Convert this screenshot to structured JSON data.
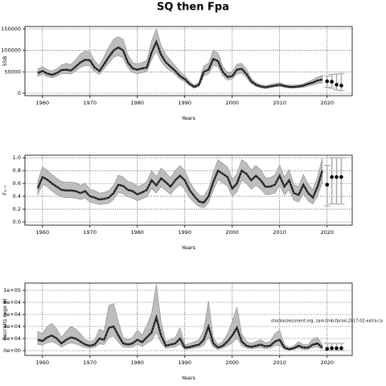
{
  "title": "SQ then Fpa",
  "chart_data": [
    {
      "type": "line",
      "xlabel": "Years",
      "ylabel": "SSB",
      "xlim": [
        1956.3,
        2025.3
      ],
      "xticks": [
        1960,
        1970,
        1980,
        1990,
        2000,
        2010,
        2020
      ],
      "ylim": [
        -5600,
        155600
      ],
      "yticks": [
        0,
        50000,
        100000,
        150000
      ],
      "grid": true,
      "x": [
        1959,
        1960,
        1961,
        1962,
        1963,
        1964,
        1965,
        1966,
        1967,
        1968,
        1969,
        1970,
        1971,
        1972,
        1973,
        1974,
        1975,
        1976,
        1977,
        1978,
        1979,
        1980,
        1981,
        1982,
        1983,
        1984,
        1985,
        1986,
        1987,
        1988,
        1989,
        1990,
        1991,
        1992,
        1993,
        1994,
        1995,
        1996,
        1997,
        1998,
        1999,
        2000,
        2001,
        2002,
        2003,
        2004,
        2005,
        2006,
        2007,
        2008,
        2009,
        2010,
        2011,
        2012,
        2013,
        2014,
        2015,
        2016,
        2017,
        2018,
        2019
      ],
      "values": [
        47000,
        52000,
        46000,
        43000,
        47000,
        54000,
        55000,
        53000,
        62000,
        72000,
        78000,
        77000,
        60000,
        52000,
        68000,
        85000,
        100000,
        107000,
        100000,
        72000,
        58000,
        55000,
        58000,
        60000,
        95000,
        120000,
        90000,
        72000,
        62000,
        52000,
        40000,
        33000,
        22000,
        15000,
        20000,
        50000,
        55000,
        80000,
        75000,
        50000,
        38000,
        40000,
        55000,
        57000,
        45000,
        28000,
        20000,
        16000,
        14000,
        16000,
        18000,
        20000,
        17000,
        15000,
        15000,
        16000,
        18000,
        22000,
        25000,
        30000,
        32000
      ],
      "lower": [
        40000,
        44000,
        39000,
        36000,
        40000,
        46000,
        46000,
        45000,
        52000,
        60000,
        65000,
        64000,
        50000,
        44000,
        57000,
        71000,
        84000,
        88000,
        82000,
        60000,
        48000,
        46000,
        48000,
        50000,
        78000,
        98000,
        74000,
        60000,
        52000,
        44000,
        33000,
        27000,
        18000,
        12000,
        16000,
        41000,
        45000,
        66000,
        62000,
        41000,
        31000,
        33000,
        45000,
        47000,
        37000,
        23000,
        16000,
        13000,
        11000,
        13000,
        15000,
        16000,
        14000,
        12000,
        12000,
        13000,
        14000,
        17000,
        19000,
        23000,
        24000
      ],
      "upper": [
        57000,
        62000,
        55000,
        52000,
        57000,
        66000,
        70000,
        67000,
        78000,
        92000,
        98000,
        97000,
        75000,
        65000,
        86000,
        108000,
        126000,
        132000,
        126000,
        90000,
        72000,
        68000,
        72000,
        76000,
        122000,
        150000,
        112000,
        90000,
        77000,
        64000,
        50000,
        41000,
        28000,
        19000,
        26000,
        64000,
        70000,
        100000,
        94000,
        63000,
        48000,
        50000,
        68000,
        70000,
        56000,
        35000,
        25000,
        20000,
        18000,
        20000,
        23000,
        25000,
        21000,
        19000,
        19000,
        20000,
        22000,
        27000,
        32000,
        38000,
        42000
      ],
      "forecast_x": [
        2020,
        2021,
        2022,
        2023
      ],
      "forecast_values": [
        28000,
        27000,
        20000,
        18000
      ],
      "forecast_lower": [
        14000,
        12000,
        8000,
        6000
      ],
      "forecast_upper": [
        40000,
        44000,
        45000,
        46000
      ]
    },
    {
      "type": "line",
      "xlabel": "Years",
      "ylabel": "F₃₋₇",
      "xlim": [
        1956.3,
        2025.3
      ],
      "xticks": [
        1960,
        1970,
        1980,
        1990,
        2000,
        2010,
        2020
      ],
      "ylim": [
        -0.05,
        1.04
      ],
      "yticks": [
        {
          "value": 0,
          "label": "0.0"
        },
        0.2,
        0.4,
        0.6,
        0.8,
        {
          "value": 1,
          "label": "1.0"
        }
      ],
      "grid": true,
      "x": [
        1959,
        1960,
        1961,
        1962,
        1963,
        1964,
        1965,
        1966,
        1967,
        1968,
        1969,
        1970,
        1971,
        1972,
        1973,
        1974,
        1975,
        1976,
        1977,
        1978,
        1979,
        1980,
        1981,
        1982,
        1983,
        1984,
        1985,
        1986,
        1987,
        1988,
        1989,
        1990,
        1991,
        1992,
        1993,
        1994,
        1995,
        1996,
        1997,
        1998,
        1999,
        2000,
        2001,
        2002,
        2003,
        2004,
        2005,
        2006,
        2007,
        2008,
        2009,
        2010,
        2011,
        2012,
        2013,
        2014,
        2015,
        2016,
        2017,
        2018,
        2019
      ],
      "values": [
        0.52,
        0.7,
        0.66,
        0.6,
        0.55,
        0.5,
        0.49,
        0.49,
        0.48,
        0.45,
        0.48,
        0.4,
        0.38,
        0.35,
        0.36,
        0.38,
        0.45,
        0.58,
        0.56,
        0.5,
        0.48,
        0.43,
        0.46,
        0.5,
        0.65,
        0.57,
        0.68,
        0.62,
        0.55,
        0.65,
        0.72,
        0.65,
        0.5,
        0.4,
        0.32,
        0.3,
        0.4,
        0.62,
        0.8,
        0.75,
        0.7,
        0.52,
        0.6,
        0.8,
        0.75,
        0.65,
        0.72,
        0.65,
        0.55,
        0.55,
        0.58,
        0.72,
        0.55,
        0.65,
        0.45,
        0.42,
        0.58,
        0.45,
        0.38,
        0.55,
        0.8
      ],
      "lower": [
        0.42,
        0.58,
        0.55,
        0.48,
        0.43,
        0.39,
        0.38,
        0.38,
        0.37,
        0.35,
        0.37,
        0.31,
        0.29,
        0.27,
        0.28,
        0.29,
        0.35,
        0.46,
        0.44,
        0.39,
        0.37,
        0.33,
        0.36,
        0.39,
        0.52,
        0.45,
        0.55,
        0.49,
        0.43,
        0.52,
        0.58,
        0.51,
        0.38,
        0.3,
        0.24,
        0.22,
        0.3,
        0.49,
        0.66,
        0.61,
        0.56,
        0.4,
        0.47,
        0.65,
        0.6,
        0.51,
        0.57,
        0.51,
        0.43,
        0.43,
        0.45,
        0.57,
        0.42,
        0.5,
        0.34,
        0.31,
        0.44,
        0.33,
        0.28,
        0.41,
        0.62
      ],
      "upper": [
        0.63,
        0.86,
        0.8,
        0.74,
        0.68,
        0.63,
        0.62,
        0.62,
        0.61,
        0.57,
        0.6,
        0.51,
        0.49,
        0.45,
        0.46,
        0.49,
        0.57,
        0.73,
        0.7,
        0.63,
        0.61,
        0.55,
        0.58,
        0.63,
        0.8,
        0.71,
        0.84,
        0.77,
        0.69,
        0.8,
        0.88,
        0.8,
        0.63,
        0.51,
        0.42,
        0.4,
        0.52,
        0.77,
        0.97,
        0.91,
        0.86,
        0.66,
        0.75,
        0.97,
        0.92,
        0.81,
        0.88,
        0.81,
        0.69,
        0.69,
        0.73,
        0.89,
        0.7,
        0.82,
        0.58,
        0.55,
        0.74,
        0.59,
        0.5,
        0.71,
        0.99
      ],
      "forecast_x": [
        2020,
        2021,
        2022,
        2023
      ],
      "forecast_values": [
        0.58,
        0.7,
        0.7,
        0.7
      ],
      "forecast_lower": [
        0.25,
        0.28,
        0.28,
        0.28
      ],
      "forecast_upper": [
        0.88,
        1.0,
        1.0,
        1.0
      ]
    },
    {
      "type": "line",
      "xlabel": "Years",
      "ylabel": "Recruits (age 0)",
      "annotation": "stockassessment.org, sam-tmb-fpcod-2017-02-extra-ca",
      "xlim": [
        1956.3,
        2025.3
      ],
      "xticks": [
        1960,
        1970,
        1980,
        1990,
        2000,
        2010,
        2020
      ],
      "ylim": [
        -8000,
        112000
      ],
      "yticks": [
        {
          "value": 0,
          "label": "0e+00"
        },
        {
          "value": 20000,
          "label": "2e+04"
        },
        {
          "value": 40000,
          "label": "4e+04"
        },
        {
          "value": 60000,
          "label": "6e+04"
        },
        {
          "value": 80000,
          "label": "8e+04"
        },
        {
          "value": 100000,
          "label": "1e+05"
        }
      ],
      "grid": true,
      "x": [
        1959,
        1960,
        1961,
        1962,
        1963,
        1964,
        1965,
        1966,
        1967,
        1968,
        1969,
        1970,
        1971,
        1972,
        1973,
        1974,
        1975,
        1976,
        1977,
        1978,
        1979,
        1980,
        1981,
        1982,
        1983,
        1984,
        1985,
        1986,
        1987,
        1988,
        1989,
        1990,
        1991,
        1992,
        1993,
        1994,
        1995,
        1996,
        1997,
        1998,
        1999,
        2000,
        2001,
        2002,
        2003,
        2004,
        2005,
        2006,
        2007,
        2008,
        2009,
        2010,
        2011,
        2012,
        2013,
        2014,
        2015,
        2016,
        2017,
        2018,
        2019
      ],
      "values": [
        18000,
        16000,
        22000,
        25000,
        20000,
        12000,
        18000,
        22000,
        20000,
        15000,
        10000,
        8000,
        10000,
        20000,
        18000,
        38000,
        40000,
        25000,
        12000,
        10000,
        12000,
        18000,
        14000,
        22000,
        30000,
        55000,
        25000,
        8000,
        10000,
        12000,
        20000,
        5000,
        6000,
        8000,
        10000,
        18000,
        40000,
        12000,
        5000,
        8000,
        15000,
        25000,
        38000,
        15000,
        8000,
        6000,
        8000,
        10000,
        7000,
        8000,
        15000,
        18000,
        5000,
        2000,
        4000,
        8000,
        5000,
        5000,
        10000,
        12000,
        5000
      ],
      "lower": [
        10000,
        9000,
        13000,
        15000,
        11000,
        6000,
        10000,
        13000,
        11000,
        8000,
        5000,
        4000,
        5000,
        11000,
        10000,
        22000,
        24000,
        14000,
        6000,
        5000,
        6000,
        10000,
        7000,
        12000,
        17000,
        30000,
        13000,
        4000,
        5000,
        6000,
        11000,
        2000,
        3000,
        4000,
        5000,
        9000,
        22000,
        6000,
        2000,
        4000,
        8000,
        13000,
        21000,
        8000,
        4000,
        3000,
        4000,
        5000,
        3000,
        4000,
        8000,
        9000,
        2000,
        1000,
        2000,
        4000,
        2000,
        2000,
        5000,
        6000,
        2000
      ],
      "upper": [
        32000,
        28000,
        40000,
        45000,
        36000,
        22000,
        32000,
        40000,
        36000,
        28000,
        18000,
        15000,
        18000,
        36000,
        32000,
        75000,
        78000,
        48000,
        22000,
        18000,
        22000,
        34000,
        26000,
        42000,
        62000,
        110000,
        48000,
        15000,
        18000,
        22000,
        38000,
        10000,
        12000,
        15000,
        18000,
        34000,
        82000,
        22000,
        10000,
        15000,
        28000,
        48000,
        72000,
        28000,
        15000,
        12000,
        15000,
        18000,
        13000,
        15000,
        28000,
        34000,
        10000,
        5000,
        8000,
        15000,
        10000,
        10000,
        20000,
        22000,
        10000
      ],
      "forecast_x": [
        2020,
        2021,
        2022,
        2023
      ],
      "forecast_values": [
        3000,
        4000,
        4000,
        4000
      ],
      "forecast_lower": [
        500,
        500,
        500,
        500
      ],
      "forecast_upper": [
        12000,
        12000,
        12000,
        12000
      ]
    }
  ]
}
